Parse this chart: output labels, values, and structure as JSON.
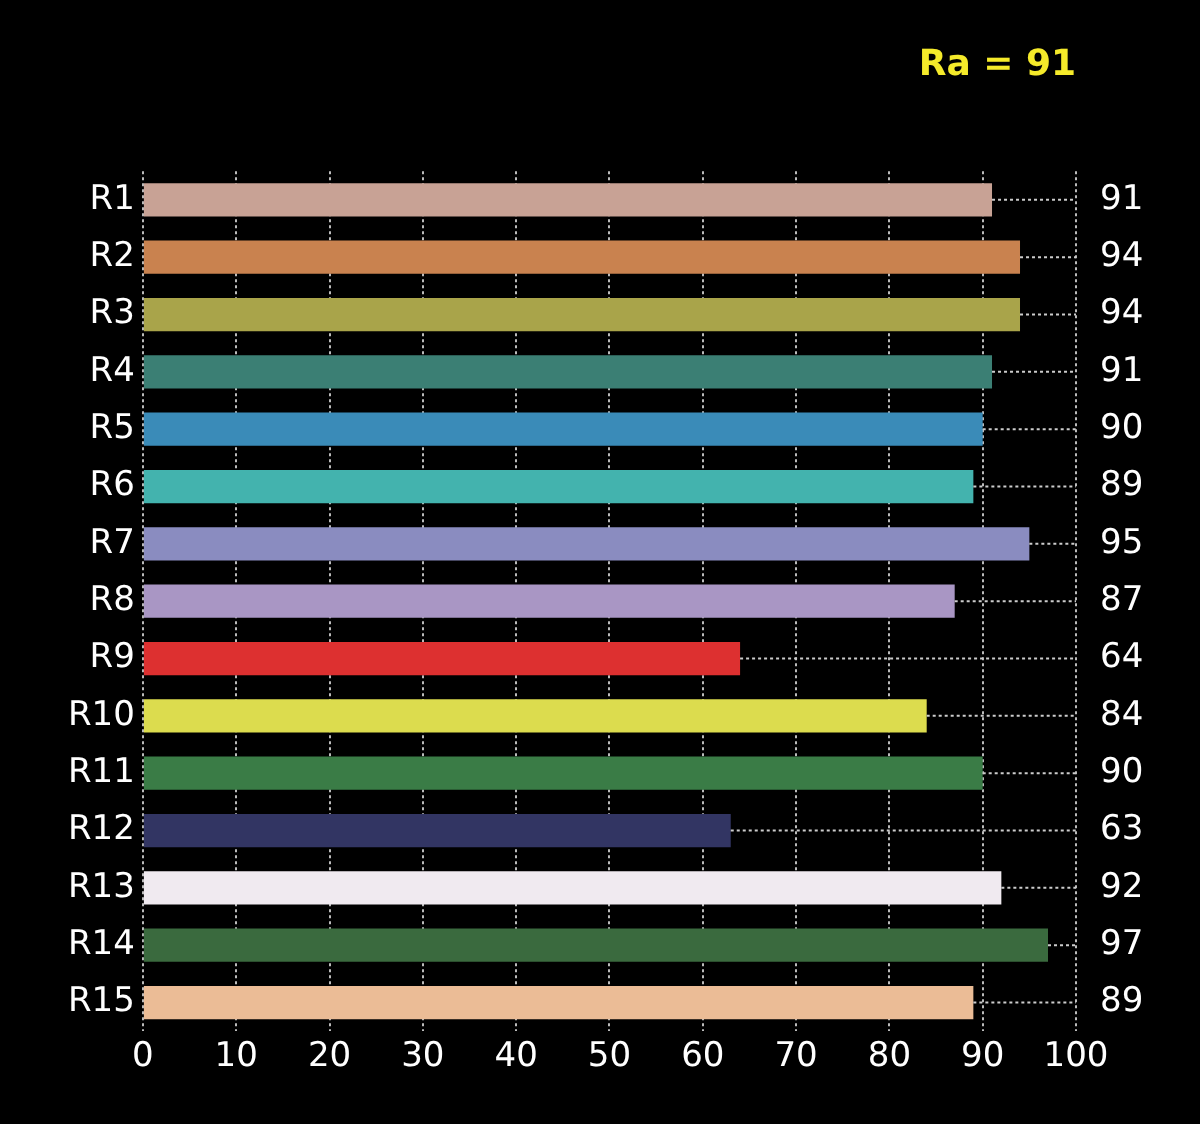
{
  "chart_data": {
    "type": "bar",
    "orientation": "horizontal",
    "title": "Ra = 91",
    "categories": [
      "R1",
      "R2",
      "R3",
      "R4",
      "R5",
      "R6",
      "R7",
      "R8",
      "R9",
      "R10",
      "R11",
      "R12",
      "R13",
      "R14",
      "R15"
    ],
    "values": [
      91,
      94,
      94,
      91,
      90,
      89,
      95,
      87,
      64,
      84,
      90,
      63,
      92,
      97,
      89
    ],
    "colors": [
      "#c8a295",
      "#c9824f",
      "#a9a44a",
      "#3b7f74",
      "#3a8bb8",
      "#43b3ae",
      "#8a8cc0",
      "#a996c4",
      "#dd3030",
      "#dcdc4e",
      "#3a7c46",
      "#323563",
      "#f0eaf0",
      "#3a6a3e",
      "#ebbc96"
    ],
    "xlim": [
      0,
      100
    ],
    "xticks": [
      0,
      10,
      20,
      30,
      40,
      50,
      60,
      70,
      80,
      90,
      100
    ],
    "grid": "x",
    "data_labels": true
  }
}
